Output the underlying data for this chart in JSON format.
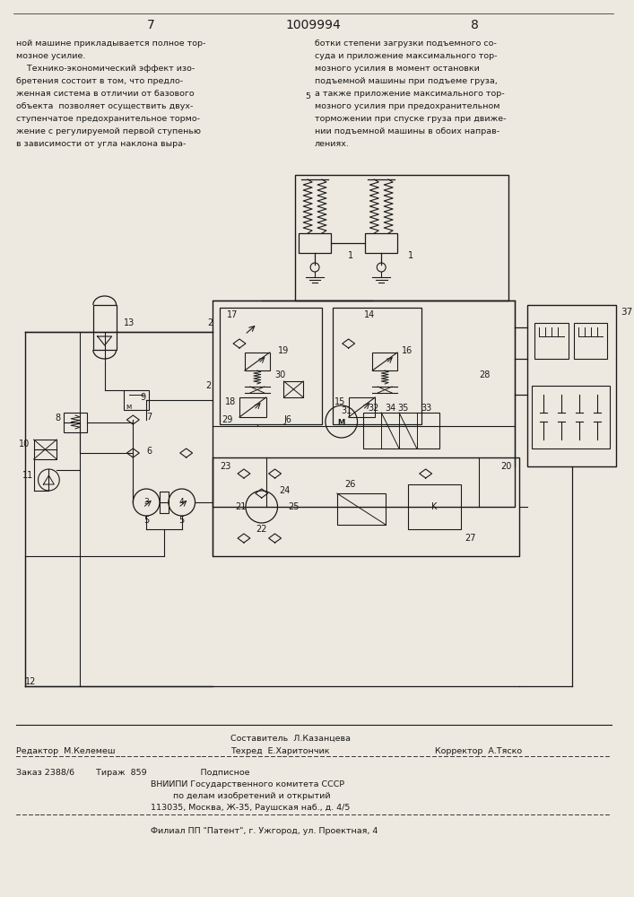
{
  "page_width": 7.07,
  "page_height": 10.0,
  "bg_color": "#ede9e0",
  "header_left_num": "7",
  "header_center": "1009994",
  "header_right_num": "8",
  "left_column_text": [
    "ной машине прикладывается полное тор-",
    "мозное усилие.",
    "    Технико-экономический эффект изо-",
    "бретения состоит в том, что предло-",
    "женная система в отличии от базового",
    "объекта  позволяет осуществить двух-",
    "ступенчатое предохранительное тормо-",
    "жение с регулируемой первой ступенью",
    "в зависимости от угла наклона выра-"
  ],
  "right_column_text": [
    "ботки степени загрузки подъемного со-",
    "суда и приложение максимального тор-",
    "мозного усилия в момент остановки",
    "подъемной машины при подъеме груза,",
    "а также приложение максимального тор-",
    "мозного усилия при предохранительном",
    "торможении при спуске груза при движе-",
    "нии подъемной машины в обоих направ-",
    "лениях."
  ],
  "right_col_5": "5",
  "editor_line": "Редактор  М.Келемеш",
  "composer_label": "Составитель  Л.Казанцева",
  "techred_line": "Техред  Е.Харитончик",
  "corrector_line": "Корректор  А.Тяско",
  "order_line": "Заказ 2388/6        Тираж  859                    Подписное",
  "vniip_line1": "ВНИИПИ Государственного комитета СССР",
  "vniip_line2": "по делам изобретений и открытий",
  "vniip_line3": "113035, Москва, Ж-35, Раушская наб., д. 4/5",
  "filial_line": "Филиал ПП \"Патент\", г. Ужгород, ул. Проектная, 4",
  "text_color": "#1a1a1a",
  "diagram_color": "#1a1a1a"
}
